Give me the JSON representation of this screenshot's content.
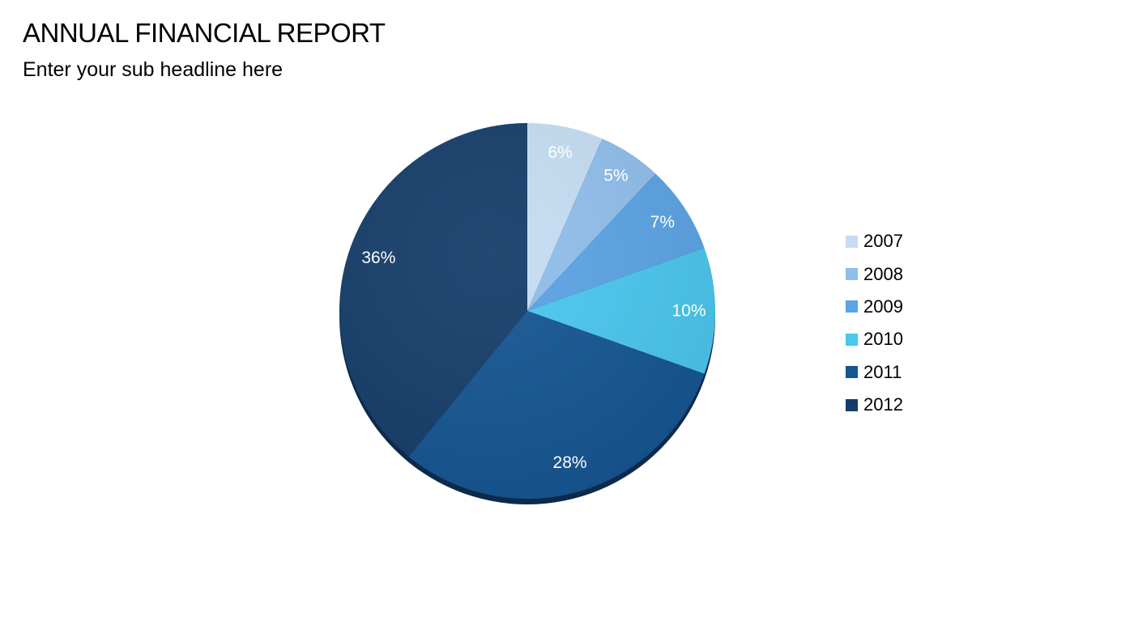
{
  "header": {
    "title": "ANNUAL FINANCIAL REPORT",
    "subtitle": "Enter your sub headline here"
  },
  "chart_data": {
    "type": "pie",
    "categories": [
      "2007",
      "2008",
      "2009",
      "2010",
      "2011",
      "2012"
    ],
    "values": [
      6,
      5,
      7,
      10,
      28,
      36
    ],
    "labels": [
      "6%",
      "5%",
      "7%",
      "10%",
      "28%",
      "36%"
    ],
    "colors": [
      "#c5ddf3",
      "#8fbeeb",
      "#5aa3e4",
      "#4ac6ef",
      "#155592",
      "#153d6a"
    ],
    "legend_position": "right",
    "data_label_color": "#ffffff"
  }
}
